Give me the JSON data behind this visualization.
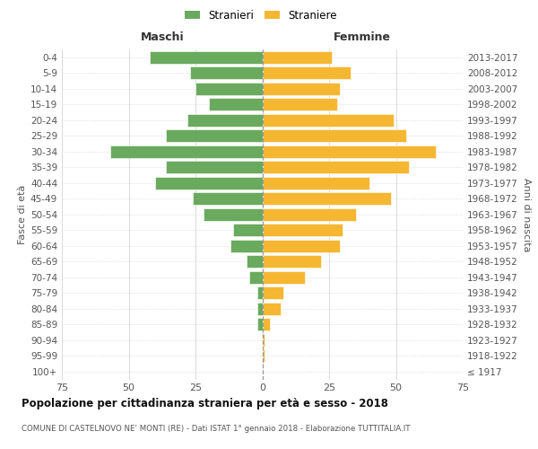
{
  "age_groups": [
    "0-4",
    "5-9",
    "10-14",
    "15-19",
    "20-24",
    "25-29",
    "30-34",
    "35-39",
    "40-44",
    "45-49",
    "50-54",
    "55-59",
    "60-64",
    "65-69",
    "70-74",
    "75-79",
    "80-84",
    "85-89",
    "90-94",
    "95-99",
    "100+"
  ],
  "birth_years": [
    "2013-2017",
    "2008-2012",
    "2003-2007",
    "1998-2002",
    "1993-1997",
    "1988-1992",
    "1983-1987",
    "1978-1982",
    "1973-1977",
    "1968-1972",
    "1963-1967",
    "1958-1962",
    "1953-1957",
    "1948-1952",
    "1943-1947",
    "1938-1942",
    "1933-1937",
    "1928-1932",
    "1923-1927",
    "1918-1922",
    "≤ 1917"
  ],
  "males": [
    42,
    27,
    25,
    20,
    28,
    36,
    57,
    36,
    40,
    26,
    22,
    11,
    12,
    6,
    5,
    2,
    2,
    2,
    0,
    0,
    0
  ],
  "females": [
    26,
    33,
    29,
    28,
    49,
    54,
    65,
    55,
    40,
    48,
    35,
    30,
    29,
    22,
    16,
    8,
    7,
    3,
    1,
    1,
    0
  ],
  "male_color": "#6aaa5e",
  "female_color": "#f5b731",
  "dashed_color": "#999999",
  "grid_color": "#cccccc",
  "xlim": 75,
  "title": "Popolazione per cittadinanza straniera per età e sesso - 2018",
  "subtitle": "COMUNE DI CASTELNOVO NE' MONTI (RE) - Dati ISTAT 1° gennaio 2018 - Elaborazione TUTTITALIA.IT",
  "xlabel_left": "Maschi",
  "xlabel_right": "Femmine",
  "ylabel_left": "Fasce di età",
  "ylabel_right": "Anni di nascita",
  "legend_male": "Stranieri",
  "legend_female": "Straniere"
}
